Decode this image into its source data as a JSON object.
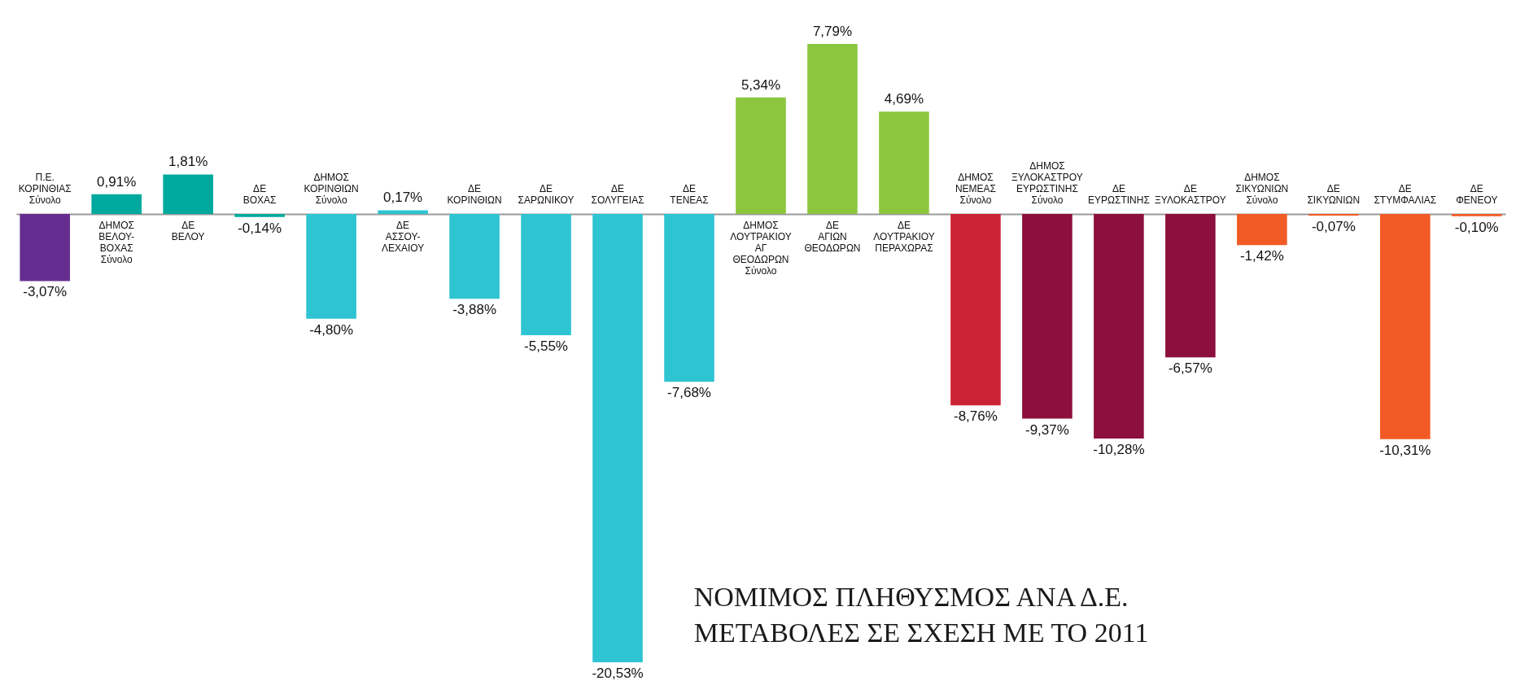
{
  "chart_data": {
    "type": "bar",
    "title": "ΝΟΜΙΜΟΣ ΠΛΗΘΥΣΜΟΣ ΑΝΑ Δ.Ε.",
    "subtitle": "ΜΕΤΑΒΟΛΕΣ ΣΕ ΣΧΕΣΗ ΜΕ ΤΟ 2011",
    "categories": [
      "Π.Ε. ΚΟΡΙΝΘΙΑΣ Σύνολο",
      "ΔΗΜΟΣ ΒΕΛΟΥ-ΒΟΧΑΣ Σύνολο",
      "ΔΕ ΒΕΛΟΥ",
      "ΔΕ ΒΟΧΑΣ",
      "ΔΗΜΟΣ ΚΟΡΙΝΘΙΩΝ Σύνολο",
      "ΔΕ ΑΣΣΟΥ-ΛΕΧΑΙΟΥ",
      "ΔΕ ΚΟΡΙΝΘΙΩΝ",
      "ΔΕ ΣΑΡΩΝΙΚΟΥ",
      "ΔΕ ΣΟΛΥΓΕΙΑΣ",
      "ΔΕ ΤΕΝΕΑΣ",
      "ΔΗΜΟΣ ΛΟΥΤΡΑΚΙΟΥ ΑΓ ΘΕΟΔΩΡΩΝ Σύνολο",
      "ΔΕ ΑΓΙΩΝ ΘΕΟΔΩΡΩΝ",
      "ΔΕ ΛΟΥΤΡΑΚΙΟΥ ΠΕΡΑΧΩΡΑΣ",
      "ΔΗΜΟΣ ΝΕΜΕΑΣ Σύνολο",
      "ΔΗΜΟΣ ΞΥΛΟΚΑΣΤΡΟΥ ΕΥΡΩΣΤΙΝΗΣ Σύνολο",
      "ΔΕ ΕΥΡΩΣΤΙΝΗΣ",
      "ΔΕ ΞΥΛΟΚΑΣΤΡΟΥ",
      "ΔΗΜΟΣ ΣΙΚΥΩΝΙΩΝ Σύνολο",
      "ΔΕ ΣΙΚΥΩΝΙΩΝ",
      "ΔΕ ΣΤΥΜΦΑΛΙΑΣ",
      "ΔΕ ΦΕΝΕΟΥ"
    ],
    "values": [
      -3.07,
      0.91,
      1.81,
      -0.14,
      -4.8,
      0.17,
      -3.88,
      -5.55,
      -20.53,
      -7.68,
      5.34,
      7.79,
      4.69,
      -8.76,
      -9.37,
      -10.28,
      -6.57,
      -1.42,
      -0.07,
      -10.31,
      -0.1
    ],
    "value_labels": [
      "-3,07%",
      "0,91%",
      "1,81%",
      "-0,14%",
      "-4,80%",
      "0,17%",
      "-3,88%",
      "-5,55%",
      "-20,53%",
      "-7,68%",
      "5,34%",
      "7,79%",
      "4,69%",
      "-8,76%",
      "-9,37%",
      "-10,28%",
      "-6,57%",
      "-1,42%",
      "-0,07%",
      "-10,31%",
      "-0,10%"
    ],
    "colors": [
      "#662d91",
      "#00a99d",
      "#00a99d",
      "#00a99d",
      "#2ec4d2",
      "#2ec4d2",
      "#2ec4d2",
      "#2ec4d2",
      "#2ec4d2",
      "#2ec4d2",
      "#8cc63f",
      "#8cc63f",
      "#8cc63f",
      "#cb2333",
      "#8c0f3e",
      "#8c0f3e",
      "#8c0f3e",
      "#f15a24",
      "#f15a24",
      "#f15a24",
      "#f15a24"
    ],
    "tick_labels": "x"
  }
}
